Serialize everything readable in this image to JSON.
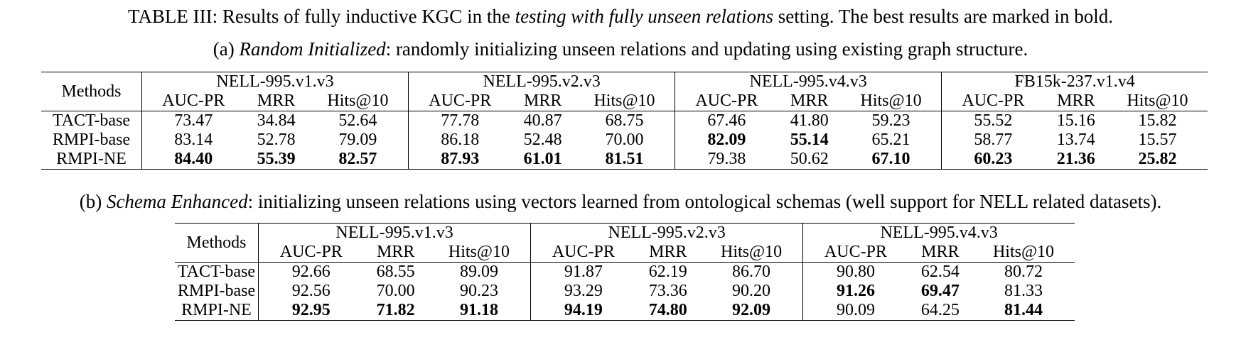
{
  "caption_main": {
    "prefix": "TABLE III: Results of fully inductive KGC in the ",
    "emph": "testing with fully unseen relations",
    "suffix": " setting. The best results are marked in bold."
  },
  "table_a": {
    "caption_label": "(a) ",
    "caption_emph": "Random Initialized",
    "caption_text": ": randomly initializing unseen relations and updating using existing graph structure.",
    "methods_header": "Methods",
    "datasets": [
      "NELL-995.v1.v3",
      "NELL-995.v2.v3",
      "NELL-995.v4.v3",
      "FB15k-237.v1.v4"
    ],
    "metrics": [
      "AUC-PR",
      "MRR",
      "Hits@10"
    ],
    "rows": [
      {
        "method": "TACT-base",
        "values": [
          "73.47",
          "34.84",
          "52.64",
          "77.78",
          "40.87",
          "68.75",
          "67.46",
          "41.80",
          "59.23",
          "55.52",
          "15.16",
          "15.82"
        ],
        "bold": [
          false,
          false,
          false,
          false,
          false,
          false,
          false,
          false,
          false,
          false,
          false,
          false
        ]
      },
      {
        "method": "RMPI-base",
        "values": [
          "83.14",
          "52.78",
          "79.09",
          "86.18",
          "52.48",
          "70.00",
          "82.09",
          "55.14",
          "65.21",
          "58.77",
          "13.74",
          "15.57"
        ],
        "bold": [
          false,
          false,
          false,
          false,
          false,
          false,
          true,
          true,
          false,
          false,
          false,
          false
        ]
      },
      {
        "method": "RMPI-NE",
        "values": [
          "84.40",
          "55.39",
          "82.57",
          "87.93",
          "61.01",
          "81.51",
          "79.38",
          "50.62",
          "67.10",
          "60.23",
          "21.36",
          "25.82"
        ],
        "bold": [
          true,
          true,
          true,
          true,
          true,
          true,
          false,
          false,
          true,
          true,
          true,
          true
        ]
      }
    ]
  },
  "table_b": {
    "caption_label": "(b) ",
    "caption_emph": "Schema Enhanced",
    "caption_text": ": initializing unseen relations using vectors learned from ontological schemas (well support for NELL related datasets).",
    "methods_header": "Methods",
    "datasets": [
      "NELL-995.v1.v3",
      "NELL-995.v2.v3",
      "NELL-995.v4.v3"
    ],
    "metrics": [
      "AUC-PR",
      "MRR",
      "Hits@10"
    ],
    "rows": [
      {
        "method": "TACT-base",
        "values": [
          "92.66",
          "68.55",
          "89.09",
          "91.87",
          "62.19",
          "86.70",
          "90.80",
          "62.54",
          "80.72"
        ],
        "bold": [
          false,
          false,
          false,
          false,
          false,
          false,
          false,
          false,
          false
        ]
      },
      {
        "method": "RMPI-base",
        "values": [
          "92.56",
          "70.00",
          "90.23",
          "93.29",
          "73.36",
          "90.20",
          "91.26",
          "69.47",
          "81.33"
        ],
        "bold": [
          false,
          false,
          false,
          false,
          false,
          false,
          true,
          true,
          false
        ]
      },
      {
        "method": "RMPI-NE",
        "values": [
          "92.95",
          "71.82",
          "91.18",
          "94.19",
          "74.80",
          "92.09",
          "90.09",
          "64.25",
          "81.44"
        ],
        "bold": [
          true,
          true,
          true,
          true,
          true,
          true,
          false,
          false,
          true
        ]
      }
    ]
  }
}
